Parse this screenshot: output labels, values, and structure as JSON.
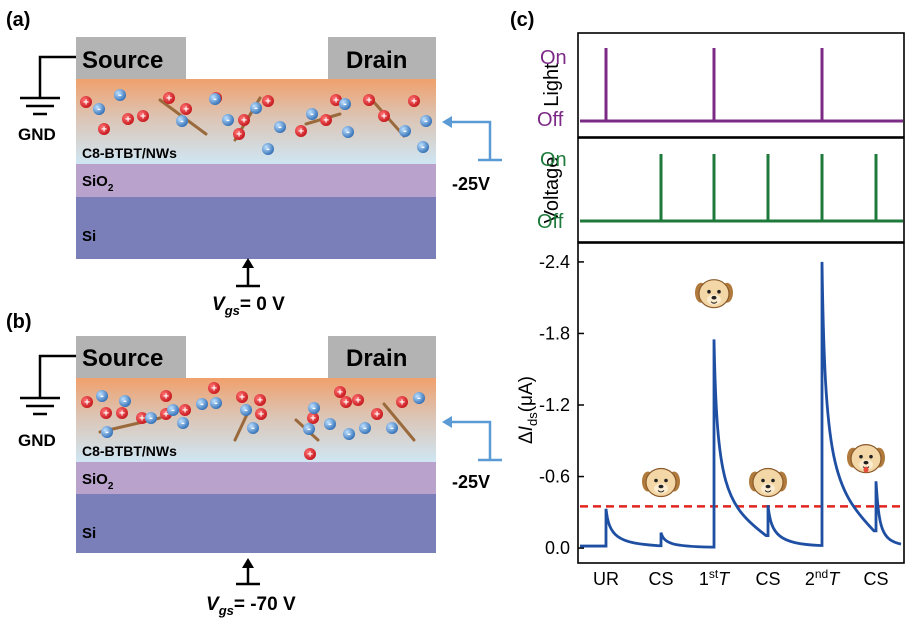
{
  "panel_a": {
    "tag": "(a)",
    "source": "Source",
    "drain": "Drain",
    "gnd": "GND",
    "channel": "C8-BTBT/NWs",
    "oxide_base": "SiO",
    "oxide_sub": "2",
    "substrate": "Si",
    "bias": "-25V",
    "vgs_v": "V",
    "vgs_sub": "gs",
    "vgs_value": "= 0 V"
  },
  "panel_b": {
    "tag": "(b)",
    "source": "Source",
    "drain": "Drain",
    "gnd": "GND",
    "channel": "C8-BTBT/NWs",
    "oxide_base": "SiO",
    "oxide_sub": "2",
    "substrate": "Si",
    "bias": "-25V",
    "vgs_v": "V",
    "vgs_sub": "gs",
    "vgs_value": "= -70 V"
  },
  "panel_c": {
    "tag": "(c)",
    "light": {
      "ylabel": "Light",
      "on": "On",
      "off": "Off",
      "color": "#7b2a86"
    },
    "voltage": {
      "ylabel": "Voltage",
      "on": "On",
      "off": "Off",
      "color": "#1d7a3a"
    }
  },
  "colors": {
    "electrode": "#b3b3b3",
    "channel_top": "#f0a26e",
    "channel_bottom": "#d9ecf5",
    "oxide": "#b9a2cb",
    "substrate": "#7a7fb9",
    "curve": "#1f4fa3",
    "threshold": "#e0261f",
    "bias_arrow": "#5b9bd5"
  },
  "chart_data": {
    "type": "line",
    "ylabel": "ΔI_ds(μA)",
    "ylim": [
      0.1,
      -2.5
    ],
    "yticks": [
      "0.0",
      "-0.6",
      "-1.2",
      "-1.8",
      "-2.4"
    ],
    "ytick_values": [
      0.0,
      -0.6,
      -1.2,
      -1.8,
      -2.4
    ],
    "xtick_labels": [
      "UR",
      "CS",
      "1stT",
      "CS",
      "2ndT",
      "CS"
    ],
    "threshold": -0.35,
    "peaks": [
      {
        "label": "UR",
        "value": -0.33
      },
      {
        "label": "CS",
        "value": -0.13
      },
      {
        "label": "1stT",
        "value": -1.75
      },
      {
        "label": "CS",
        "value": -0.36
      },
      {
        "label": "2ndT",
        "value": -2.4
      },
      {
        "label": "CS",
        "value": -0.56
      }
    ],
    "light_pulses": 3,
    "voltage_pulses": 5
  }
}
